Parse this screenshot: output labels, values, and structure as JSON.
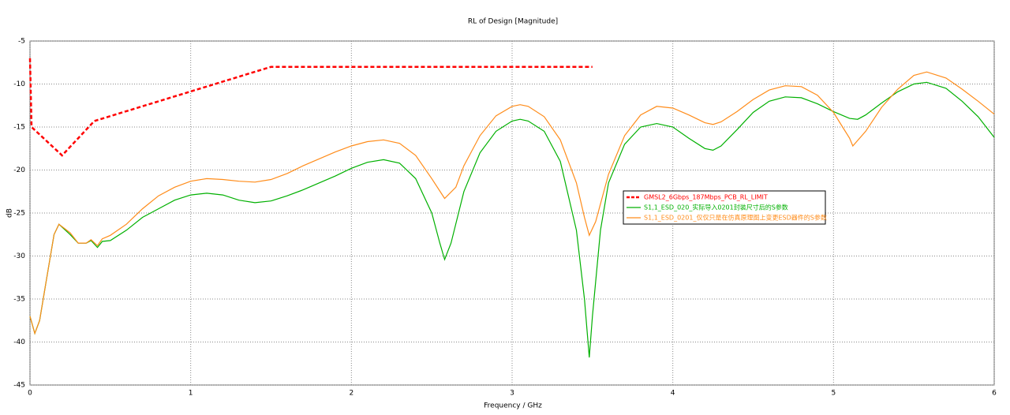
{
  "chart_data": {
    "type": "line",
    "title": "RL of Design [Magnitude]",
    "x_label": "Frequency / GHz",
    "y_label": "dB",
    "xlim": [
      0,
      6
    ],
    "xticks": [
      0,
      1,
      2,
      3,
      4,
      5,
      6
    ],
    "ylim": [
      -45,
      -5
    ],
    "yticks": [
      -45,
      -40,
      -35,
      -30,
      -25,
      -20,
      -15,
      -10,
      -5
    ],
    "grid": true,
    "series": [
      {
        "name": "GMSL2_6Gbps_187Mbps_PCB_RL_LIMIT",
        "color": "#ff0000",
        "dashed": true,
        "x": [
          0,
          0.01,
          0.2,
          0.4,
          1.5,
          3.5
        ],
        "values": [
          -7,
          -15,
          -18.3,
          -14.3,
          -8,
          -8
        ]
      },
      {
        "name": "S1,1_ESD_020_实际导入0201封装尺寸后的S参数",
        "color": "#00b000",
        "dashed": false,
        "x": [
          0,
          0.03,
          0.06,
          0.1,
          0.15,
          0.18,
          0.25,
          0.3,
          0.35,
          0.38,
          0.42,
          0.45,
          0.5,
          0.6,
          0.7,
          0.8,
          0.9,
          1.0,
          1.1,
          1.2,
          1.3,
          1.4,
          1.5,
          1.6,
          1.7,
          1.8,
          1.9,
          2.0,
          2.1,
          2.2,
          2.3,
          2.4,
          2.5,
          2.55,
          2.58,
          2.62,
          2.7,
          2.8,
          2.9,
          3.0,
          3.05,
          3.1,
          3.2,
          3.3,
          3.4,
          3.45,
          3.48,
          3.5,
          3.55,
          3.6,
          3.7,
          3.8,
          3.9,
          4.0,
          4.1,
          4.2,
          4.25,
          4.3,
          4.4,
          4.5,
          4.6,
          4.7,
          4.8,
          4.9,
          5.0,
          5.1,
          5.15,
          5.2,
          5.3,
          5.4,
          5.5,
          5.58,
          5.7,
          5.8,
          5.9,
          6.0
        ],
        "values": [
          -37,
          -39,
          -37.5,
          -33,
          -27.5,
          -26.3,
          -27.5,
          -28.5,
          -28.5,
          -28.2,
          -29,
          -28.3,
          -28.2,
          -27,
          -25.5,
          -24.5,
          -23.5,
          -22.9,
          -22.7,
          -22.9,
          -23.5,
          -23.8,
          -23.6,
          -23,
          -22.3,
          -21.5,
          -20.7,
          -19.8,
          -19.1,
          -18.8,
          -19.2,
          -21,
          -25,
          -28.5,
          -30.4,
          -28.5,
          -22.5,
          -18,
          -15.5,
          -14.3,
          -14.1,
          -14.3,
          -15.5,
          -19,
          -27,
          -35,
          -41.8,
          -37,
          -27,
          -21.5,
          -17,
          -15,
          -14.6,
          -15,
          -16.3,
          -17.5,
          -17.7,
          -17.2,
          -15.3,
          -13.3,
          -12,
          -11.5,
          -11.6,
          -12.3,
          -13.2,
          -14,
          -14.1,
          -13.6,
          -12.2,
          -10.9,
          -10,
          -9.8,
          -10.5,
          -12,
          -13.8,
          -16.2
        ]
      },
      {
        "name": "S1,1_ESD_0201_仅仅只是在仿真原理图上变更ESD器件的S参数",
        "color": "#ff8c1a",
        "dashed": false,
        "x": [
          0,
          0.03,
          0.06,
          0.1,
          0.15,
          0.18,
          0.25,
          0.3,
          0.35,
          0.38,
          0.42,
          0.45,
          0.5,
          0.6,
          0.7,
          0.8,
          0.9,
          1.0,
          1.1,
          1.2,
          1.3,
          1.4,
          1.5,
          1.6,
          1.7,
          1.8,
          1.9,
          2.0,
          2.1,
          2.2,
          2.3,
          2.4,
          2.5,
          2.58,
          2.65,
          2.7,
          2.8,
          2.9,
          3.0,
          3.05,
          3.1,
          3.2,
          3.3,
          3.4,
          3.45,
          3.48,
          3.52,
          3.6,
          3.7,
          3.8,
          3.9,
          4.0,
          4.1,
          4.2,
          4.25,
          4.3,
          4.4,
          4.5,
          4.6,
          4.7,
          4.8,
          4.9,
          5.0,
          5.1,
          5.12,
          5.2,
          5.3,
          5.4,
          5.5,
          5.58,
          5.7,
          5.8,
          5.9,
          6.0
        ],
        "values": [
          -37,
          -39,
          -37.5,
          -33,
          -27.5,
          -26.3,
          -27.3,
          -28.5,
          -28.5,
          -28.1,
          -28.8,
          -28,
          -27.6,
          -26.3,
          -24.5,
          -23,
          -22,
          -21.3,
          -21,
          -21.1,
          -21.3,
          -21.4,
          -21.1,
          -20.4,
          -19.5,
          -18.7,
          -17.9,
          -17.2,
          -16.7,
          -16.5,
          -16.9,
          -18.3,
          -21,
          -23.3,
          -22,
          -19.5,
          -16,
          -13.7,
          -12.6,
          -12.4,
          -12.6,
          -13.8,
          -16.5,
          -21.5,
          -25.5,
          -27.6,
          -26,
          -20.5,
          -16,
          -13.6,
          -12.6,
          -12.8,
          -13.6,
          -14.5,
          -14.7,
          -14.4,
          -13.2,
          -11.8,
          -10.7,
          -10.2,
          -10.3,
          -11.3,
          -13.3,
          -16.3,
          -17.2,
          -15.5,
          -12.7,
          -10.6,
          -9,
          -8.6,
          -9.3,
          -10.6,
          -12,
          -13.5
        ]
      }
    ]
  }
}
